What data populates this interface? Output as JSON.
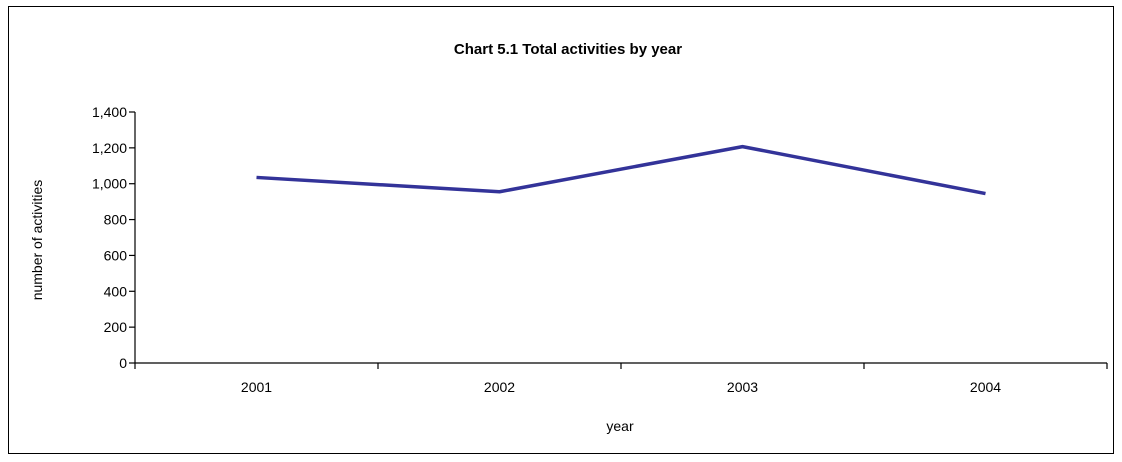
{
  "chart_data": {
    "type": "line",
    "title": "Chart 5.1  Total activities by year",
    "xlabel": "year",
    "ylabel": "number of activities",
    "categories": [
      "2001",
      "2002",
      "2003",
      "2004"
    ],
    "series": [
      {
        "values": [
          1035,
          955,
          1207,
          945
        ],
        "color": "#333399"
      }
    ],
    "ylim": [
      0,
      1400
    ],
    "yticks": [
      0,
      200,
      400,
      600,
      800,
      1000,
      1200,
      1400
    ],
    "ytick_labels": [
      "0",
      "200",
      "400",
      "600",
      "800",
      "1,000",
      "1,200",
      "1,400"
    ],
    "grid": false,
    "legend": "none"
  }
}
